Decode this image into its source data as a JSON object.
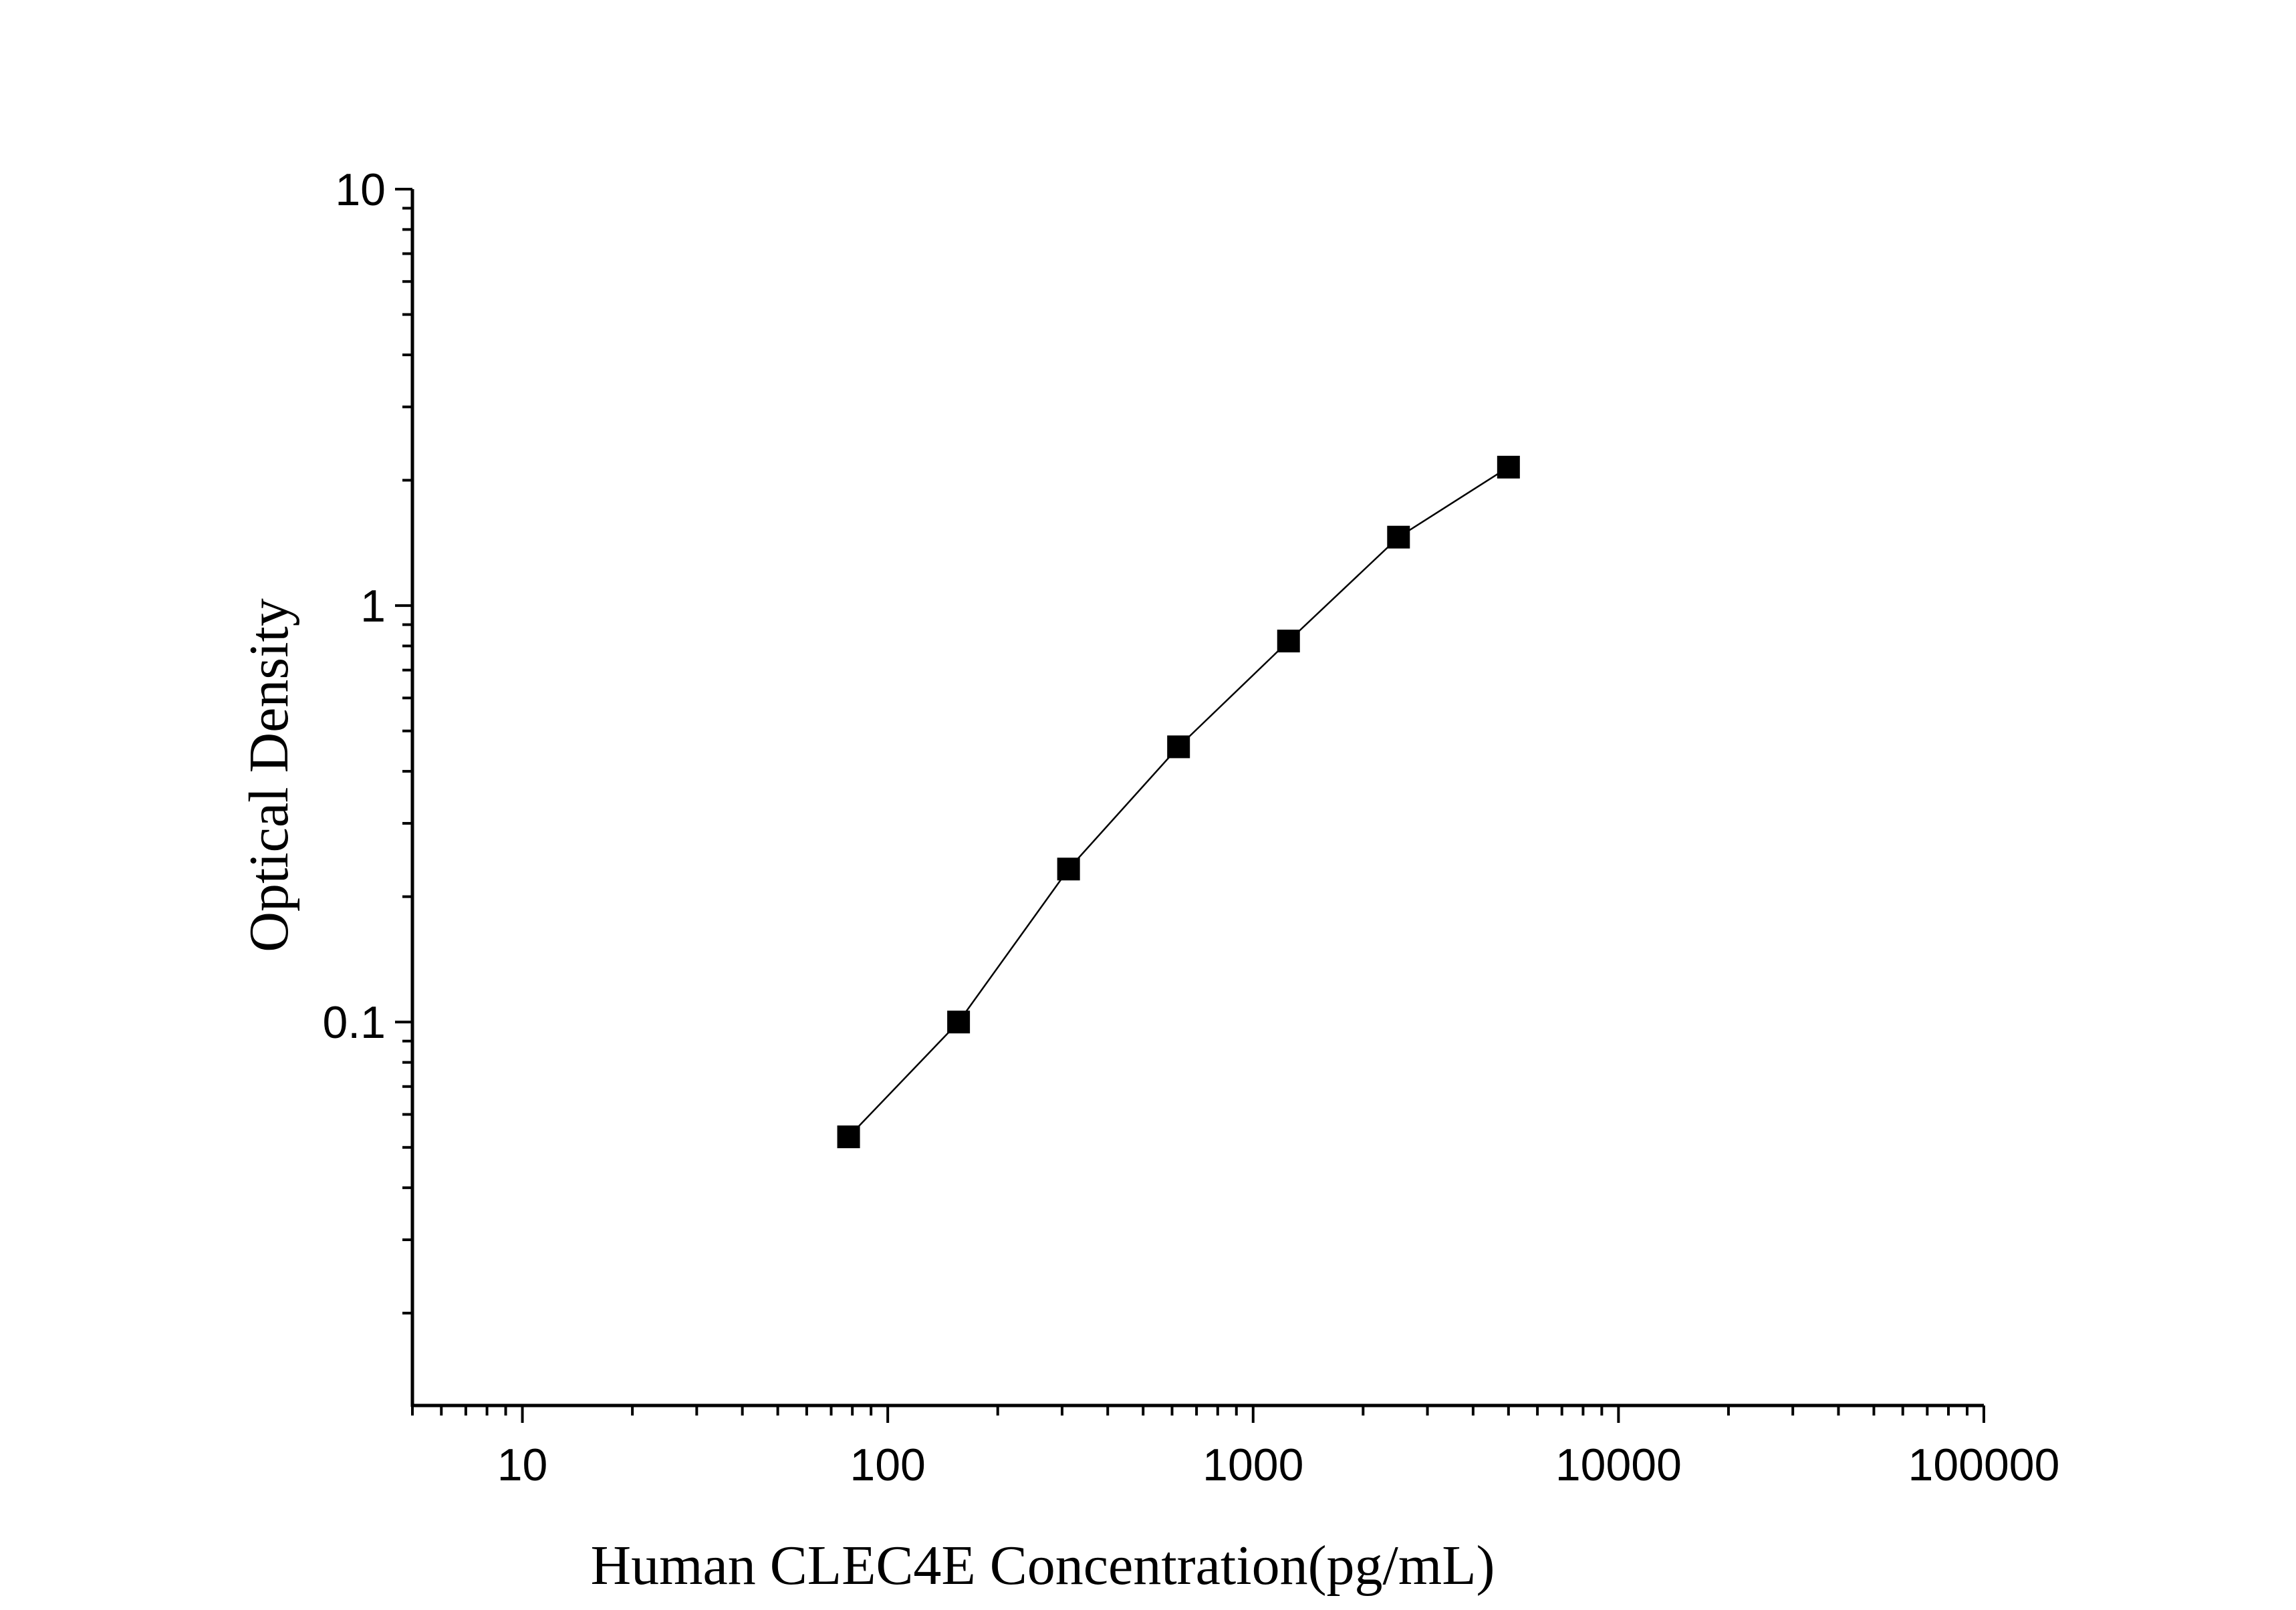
{
  "chart_data": {
    "type": "line",
    "title": "",
    "xlabel": "Human CLEC4E Concentration(pg/mL)",
    "ylabel": "Optical Density",
    "xscale": "log",
    "yscale": "log",
    "xlim": [
      5,
      100000
    ],
    "ylim": [
      0.012,
      10
    ],
    "xticks": [
      "10",
      "100",
      "1000",
      "10000",
      "100000"
    ],
    "yticks": [
      "0.1",
      "1",
      "10"
    ],
    "grid": false,
    "marker": "square",
    "colors": {
      "line": "#000000",
      "marker": "#000000"
    },
    "series": [
      {
        "x": [
          78.125,
          156.25,
          312.5,
          625,
          1250,
          2500,
          5000
        ],
        "y": [
          0.053,
          0.1,
          0.233,
          0.458,
          0.822,
          1.46,
          2.15
        ]
      }
    ]
  }
}
